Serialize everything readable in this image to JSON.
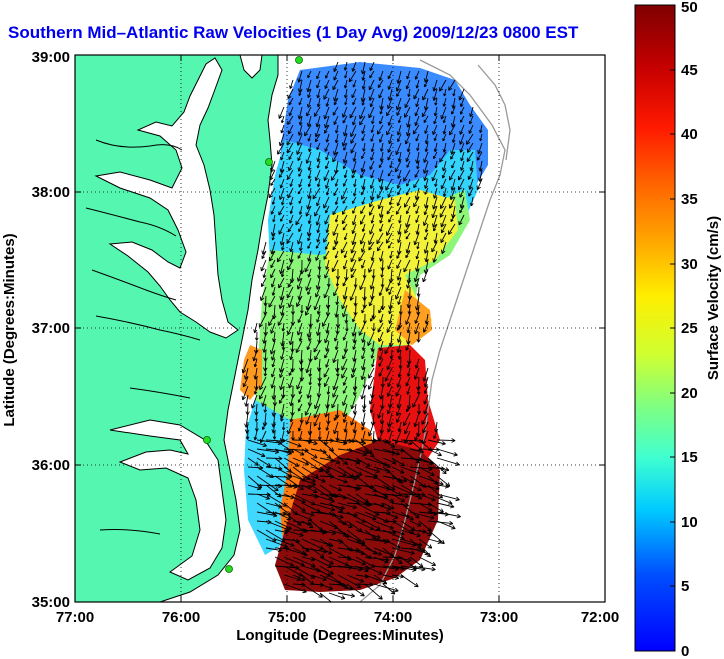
{
  "title": "Southern Mid–Atlantic Raw Velocities (1 Day Avg) 2009/12/23 0800 EST",
  "colors": {
    "land": "#55f7b0",
    "coast_line": "#000000",
    "frame": "#000000",
    "title": "#0000ee",
    "station_marker": "#22dd22",
    "isobath": "#999999"
  },
  "map": {
    "lon_range": [
      "77:00",
      "72:00"
    ],
    "lat_range": [
      "35:00",
      "39:00"
    ],
    "x_ticks": [
      "77:00",
      "76:00",
      "75:00",
      "74:00",
      "73:00",
      "72:00"
    ],
    "y_ticks": [
      "35:00",
      "36:00",
      "37:00",
      "38:00",
      "39:00"
    ],
    "xlabel": "Longitude (Degrees:Minutes)",
    "ylabel": "Latitude (Degrees:Minutes)",
    "grid": "dotted"
  },
  "colorbar": {
    "label": "Surface Velocity (cm/s)",
    "min": 0,
    "max": 50,
    "ticks": [
      "0",
      "5",
      "10",
      "15",
      "20",
      "25",
      "30",
      "35",
      "40",
      "45",
      "50"
    ],
    "colormap": "jet"
  }
}
